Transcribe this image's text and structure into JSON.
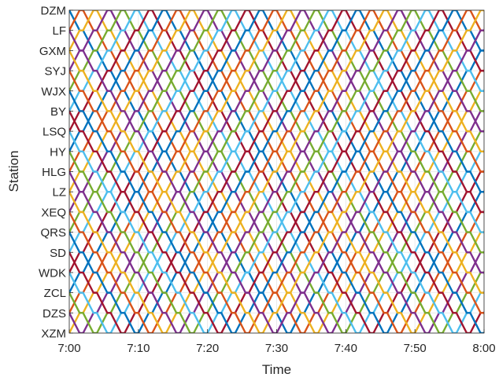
{
  "chart_data": {
    "type": "line",
    "title": "",
    "xlabel": "Time",
    "ylabel": "Station",
    "x_range": [
      "7:00",
      "8:00"
    ],
    "x_ticks": [
      "7:00",
      "7:10",
      "7:20",
      "7:30",
      "7:40",
      "7:50",
      "8:00"
    ],
    "stations": [
      "DZM",
      "LF",
      "GXM",
      "SYJ",
      "WJX",
      "BY",
      "LSQ",
      "HY",
      "HLG",
      "LZ",
      "XEQ",
      "QRS",
      "SD",
      "WDK",
      "ZCL",
      "DZS",
      "XZM"
    ],
    "grid": true,
    "legend": "none",
    "headway_minutes": 2,
    "running_time_minutes_per_section": 1.5,
    "dwell_time_minutes": 0.5,
    "turnaround_minutes": 0.5,
    "line_colors": [
      "#0072BD",
      "#D95319",
      "#EDB120",
      "#7E2F8E",
      "#77AC30",
      "#4DBEEE",
      "#A2142F"
    ]
  }
}
